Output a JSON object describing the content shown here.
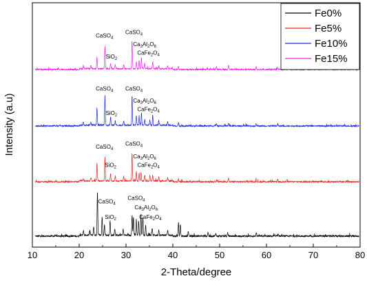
{
  "chart_data": {
    "type": "line",
    "xlabel": "2-Theta/degree",
    "ylabel": "Intensity (a.u)",
    "xlim": [
      10,
      80
    ],
    "xticks": [
      10,
      20,
      30,
      40,
      50,
      60,
      70,
      80
    ],
    "y_tick_labels": false,
    "grid": false,
    "legend_position": "top-right",
    "series": [
      {
        "name": "Fe0%",
        "color": "#000000",
        "peaks": [
          [
            20.9,
            0.1
          ],
          [
            22.3,
            0.1
          ],
          [
            23.1,
            0.18
          ],
          [
            23.9,
            0.92
          ],
          [
            24.9,
            0.38
          ],
          [
            25.4,
            0.22
          ],
          [
            26.6,
            0.3
          ],
          [
            27.6,
            0.14
          ],
          [
            29.4,
            0.13
          ],
          [
            31.3,
            0.42
          ],
          [
            31.6,
            0.38
          ],
          [
            32.2,
            0.34
          ],
          [
            32.7,
            0.3
          ],
          [
            33.2,
            0.42
          ],
          [
            33.6,
            0.36
          ],
          [
            34.2,
            0.2
          ],
          [
            35.6,
            0.14
          ],
          [
            37.0,
            0.12
          ],
          [
            38.9,
            0.1
          ],
          [
            41.2,
            0.3
          ],
          [
            41.6,
            0.25
          ],
          [
            43.3,
            0.1
          ],
          [
            47.5,
            0.08
          ],
          [
            49.2,
            0.06
          ],
          [
            51.7,
            0.07
          ],
          [
            57.8,
            0.05
          ],
          [
            62.5,
            0.05
          ]
        ],
        "annotations": [
          {
            "label": "CaSO4",
            "x": 25.9,
            "level": 0.68
          },
          {
            "label": "SiO2",
            "x": 26.7,
            "level": 0.36
          },
          {
            "label": "CaSO4",
            "x": 32.2,
            "level": 0.75
          },
          {
            "label": "Ca3Al2O6",
            "x": 34.3,
            "level": 0.56
          },
          {
            "label": "CaFe2O4",
            "x": 35.2,
            "level": 0.36
          }
        ]
      },
      {
        "name": "Fe5%",
        "color": "#e8241c",
        "peaks": [
          [
            20.9,
            0.06
          ],
          [
            22.5,
            0.08
          ],
          [
            23.8,
            0.45
          ],
          [
            25.5,
            0.62
          ],
          [
            26.7,
            0.2
          ],
          [
            27.7,
            0.12
          ],
          [
            29.5,
            0.12
          ],
          [
            31.3,
            0.72
          ],
          [
            32.2,
            0.25
          ],
          [
            32.8,
            0.2
          ],
          [
            33.2,
            0.22
          ],
          [
            34.0,
            0.14
          ],
          [
            35.1,
            0.14
          ],
          [
            35.7,
            0.14
          ],
          [
            37.0,
            0.11
          ],
          [
            38.9,
            0.08
          ],
          [
            41.2,
            0.08
          ],
          [
            49.3,
            0.06
          ],
          [
            51.9,
            0.1
          ],
          [
            57.8,
            0.05
          ],
          [
            62.4,
            0.05
          ]
        ],
        "annotations": [
          {
            "label": "CaSO4",
            "x": 25.4,
            "level": 0.84
          },
          {
            "label": "SiO2",
            "x": 26.7,
            "level": 0.38
          },
          {
            "label": "CaSO4",
            "x": 31.7,
            "level": 0.92
          },
          {
            "label": "Ca3Al2O6",
            "x": 34.0,
            "level": 0.6
          },
          {
            "label": "CaFe2O4",
            "x": 34.8,
            "level": 0.38
          }
        ]
      },
      {
        "name": "Fe10%",
        "color": "#1c2ae0",
        "peaks": [
          [
            20.9,
            0.07
          ],
          [
            22.5,
            0.08
          ],
          [
            23.8,
            0.45
          ],
          [
            25.5,
            0.78
          ],
          [
            26.7,
            0.2
          ],
          [
            27.7,
            0.12
          ],
          [
            29.5,
            0.12
          ],
          [
            31.3,
            0.75
          ],
          [
            32.2,
            0.25
          ],
          [
            32.8,
            0.24
          ],
          [
            33.3,
            0.3
          ],
          [
            34.0,
            0.14
          ],
          [
            35.1,
            0.14
          ],
          [
            35.7,
            0.25
          ],
          [
            37.0,
            0.1
          ],
          [
            38.9,
            0.08
          ],
          [
            41.2,
            0.09
          ],
          [
            49.3,
            0.06
          ],
          [
            51.9,
            0.08
          ],
          [
            57.8,
            0.05
          ],
          [
            62.4,
            0.05
          ]
        ],
        "annotations": [
          {
            "label": "CaSO4",
            "x": 25.4,
            "level": 0.9
          },
          {
            "label": "SiO2",
            "x": 26.9,
            "level": 0.28
          },
          {
            "label": "CaSO4",
            "x": 31.7,
            "level": 0.9
          },
          {
            "label": "Ca3Al2O6",
            "x": 34.0,
            "level": 0.6
          },
          {
            "label": "CaFe2O4",
            "x": 34.8,
            "level": 0.38
          }
        ]
      },
      {
        "name": "Fe15%",
        "color": "#ee22ee",
        "peaks": [
          [
            20.9,
            0.05
          ],
          [
            22.5,
            0.08
          ],
          [
            23.8,
            0.3
          ],
          [
            25.5,
            0.6
          ],
          [
            26.7,
            0.14
          ],
          [
            27.7,
            0.1
          ],
          [
            29.5,
            0.1
          ],
          [
            31.3,
            0.72
          ],
          [
            32.2,
            0.2
          ],
          [
            32.8,
            0.22
          ],
          [
            33.3,
            0.3
          ],
          [
            34.0,
            0.14
          ],
          [
            35.7,
            0.18
          ],
          [
            37.0,
            0.09
          ],
          [
            38.9,
            0.07
          ],
          [
            41.2,
            0.07
          ],
          [
            49.3,
            0.06
          ],
          [
            51.9,
            0.1
          ],
          [
            57.8,
            0.05
          ],
          [
            62.4,
            0.05
          ]
        ],
        "annotations": [
          {
            "label": "CaSO4",
            "x": 25.4,
            "level": 0.82
          },
          {
            "label": "SiO2",
            "x": 26.9,
            "level": 0.28
          },
          {
            "label": "CaSO4",
            "x": 31.7,
            "level": 0.9
          },
          {
            "label": "Ca3Al2O6",
            "x": 34.0,
            "level": 0.6
          },
          {
            "label": "CaFe2O4",
            "x": 34.8,
            "level": 0.38
          }
        ]
      }
    ]
  }
}
